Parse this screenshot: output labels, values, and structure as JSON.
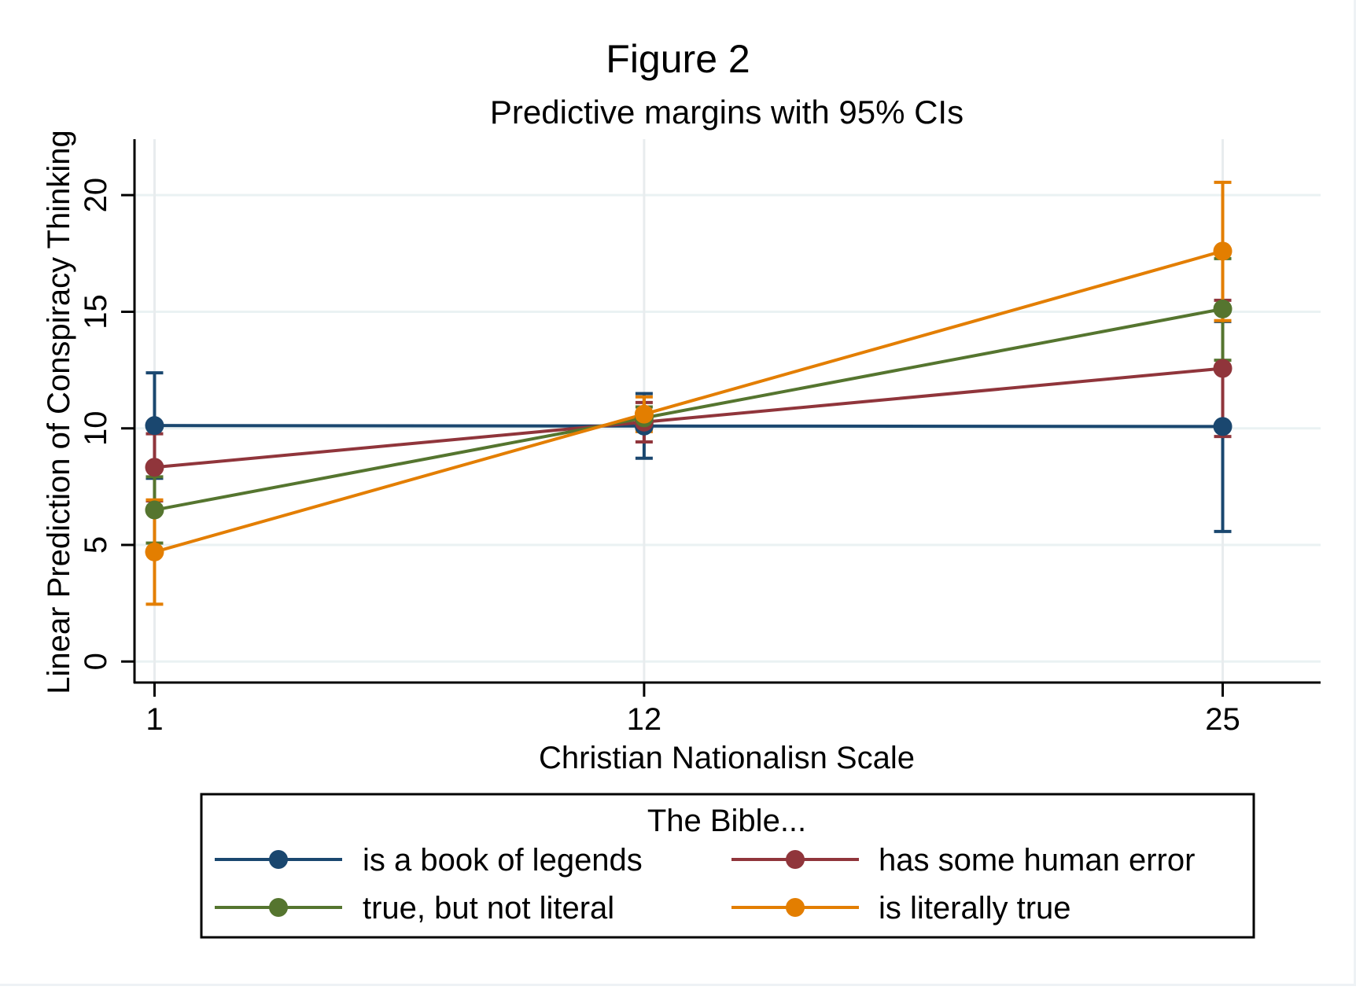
{
  "chart_data": {
    "type": "line",
    "title": "Figure 2",
    "subtitle": "Predictive margins with 95% CIs",
    "xlabel": "Christian Nationalisn Scale",
    "ylabel": "Linear Prediction of Conspiracy Thinking",
    "x": [
      1,
      12,
      25
    ],
    "x_tick_labels": [
      "1",
      "12",
      "25"
    ],
    "xlim": [
      0.55,
      27.2
    ],
    "ylim": [
      -0.9,
      22.4
    ],
    "y_ticks": [
      0,
      5,
      10,
      15,
      20
    ],
    "y_tick_labels": [
      "0",
      "5",
      "10",
      "15",
      "20"
    ],
    "grid": true,
    "legend": {
      "title": "The Bible...",
      "placement": "bottom",
      "columns": 2
    },
    "series": [
      {
        "name": "is a book of legends",
        "color": "#1a476f",
        "values": [
          10.12,
          10.1,
          10.08
        ],
        "ci_low": [
          7.86,
          8.72,
          5.58
        ],
        "ci_high": [
          12.38,
          11.49,
          14.58
        ]
      },
      {
        "name": "has some human error",
        "color": "#90353b",
        "values": [
          8.33,
          10.27,
          12.57
        ],
        "ci_low": [
          6.89,
          9.42,
          9.65
        ],
        "ci_high": [
          9.77,
          11.11,
          15.49
        ]
      },
      {
        "name": "true, but not literal",
        "color": "#55752f",
        "values": [
          6.5,
          10.45,
          15.12
        ],
        "ci_low": [
          5.08,
          9.98,
          12.92
        ],
        "ci_high": [
          7.92,
          10.92,
          17.28
        ]
      },
      {
        "name": "is literally true",
        "color": "#e37e00",
        "values": [
          4.7,
          10.61,
          17.6
        ],
        "ci_low": [
          2.46,
          9.86,
          14.62
        ],
        "ci_high": [
          6.93,
          11.35,
          20.55
        ]
      }
    ]
  },
  "colors": {
    "grid": "#eaf2f3",
    "axis": "#000000"
  }
}
